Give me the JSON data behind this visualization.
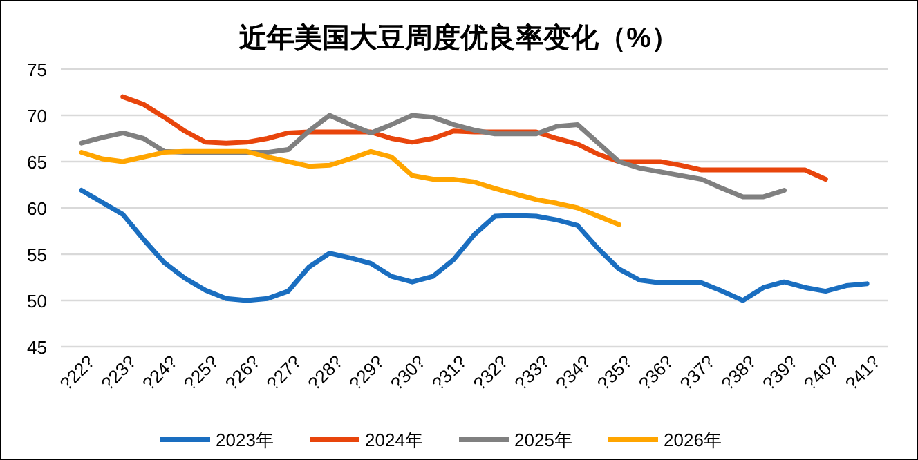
{
  "chart_data": {
    "type": "line",
    "title": "近年美国大豆周度优良率变化（%）",
    "categories": [
      "?22?",
      null,
      "?23?",
      null,
      "?24?",
      null,
      "?25?",
      null,
      "?26?",
      null,
      "?27?",
      null,
      "?28?",
      null,
      "?29?",
      null,
      "?30?",
      null,
      "?31?",
      null,
      "?32?",
      null,
      "?33?",
      null,
      "?34?",
      null,
      "?35?",
      null,
      "?36?",
      null,
      "?37?",
      null,
      "?38?",
      null,
      "?39?",
      null,
      "?40?",
      null,
      "?41?"
    ],
    "series": [
      {
        "name": "2023年",
        "color": "#1a6ec0",
        "values": [
          61.9,
          60.6,
          59.3,
          56.6,
          54.1,
          52.4,
          51.1,
          50.2,
          50.0,
          50.2,
          51.0,
          53.6,
          55.1,
          54.6,
          54.0,
          52.6,
          52.0,
          52.6,
          54.4,
          57.1,
          59.1,
          59.2,
          59.1,
          58.7,
          58.1,
          55.6,
          53.4,
          52.2,
          51.9,
          51.9,
          51.9,
          51.0,
          50.0,
          51.4,
          52.0,
          51.4,
          51.0,
          51.6,
          51.8
        ]
      },
      {
        "name": "2024年",
        "color": "#e8450c",
        "values": [
          null,
          null,
          72.0,
          71.2,
          69.8,
          68.3,
          67.1,
          67.0,
          67.1,
          67.5,
          68.1,
          68.2,
          68.2,
          68.2,
          68.2,
          67.5,
          67.1,
          67.5,
          68.3,
          68.2,
          68.2,
          68.2,
          68.2,
          67.5,
          66.9,
          65.8,
          65.0,
          65.0,
          65.0,
          64.6,
          64.1,
          64.1,
          64.1,
          64.1,
          64.1,
          64.1,
          63.1,
          null,
          null
        ]
      },
      {
        "name": "2025年",
        "color": "#808080",
        "values": [
          67.0,
          67.6,
          68.1,
          67.5,
          66.1,
          66.0,
          66.0,
          66.0,
          66.0,
          66.0,
          66.3,
          68.3,
          70.0,
          69.0,
          68.1,
          69.0,
          70.0,
          69.8,
          69.0,
          68.4,
          68.0,
          68.0,
          68.0,
          68.8,
          69.0,
          67.0,
          65.0,
          64.3,
          63.9,
          63.5,
          63.1,
          62.1,
          61.2,
          61.2,
          61.9,
          null,
          null,
          null,
          null
        ]
      },
      {
        "name": "2026年",
        "color": "#ffa500",
        "values": [
          66.0,
          65.3,
          65.0,
          65.5,
          66.0,
          66.1,
          66.1,
          66.1,
          66.1,
          65.5,
          65.0,
          64.5,
          64.6,
          65.3,
          66.1,
          65.5,
          63.5,
          63.1,
          63.1,
          62.8,
          62.1,
          61.5,
          60.9,
          60.5,
          60.0,
          59.1,
          58.2,
          null,
          null,
          null,
          null,
          null,
          null,
          null,
          null,
          null,
          null,
          null,
          null
        ]
      }
    ],
    "ylim": [
      45,
      75
    ],
    "yticks": [
      45,
      50,
      55,
      60,
      65,
      70,
      75
    ],
    "grid": "y",
    "legend": "bottom"
  }
}
